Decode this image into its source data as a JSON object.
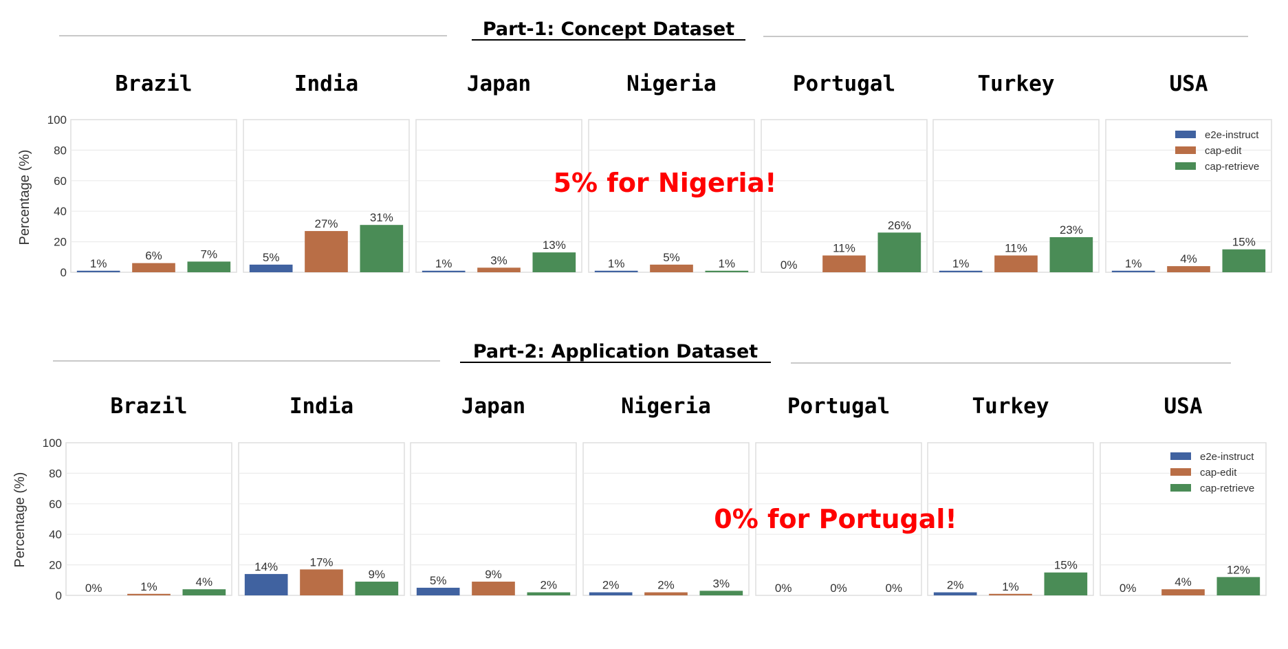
{
  "chart_data": [
    {
      "type": "bar",
      "title": "Part-1: Concept Dataset",
      "ylabel": "Percentage (%)",
      "ylim": [
        0,
        100
      ],
      "yticks": [
        "0",
        "20",
        "40",
        "60",
        "80",
        "100"
      ],
      "grid": true,
      "legend_position": "top-right",
      "annotation": "5% for Nigeria!",
      "value_suffix": "%",
      "panels": [
        {
          "name": "Brazil",
          "values": [
            1,
            6,
            7
          ]
        },
        {
          "name": "India",
          "values": [
            5,
            27,
            31
          ]
        },
        {
          "name": "Japan",
          "values": [
            1,
            3,
            13
          ]
        },
        {
          "name": "Nigeria",
          "values": [
            1,
            5,
            1
          ]
        },
        {
          "name": "Portugal",
          "values": [
            0,
            11,
            26
          ]
        },
        {
          "name": "Turkey",
          "values": [
            1,
            11,
            23
          ]
        },
        {
          "name": "USA",
          "values": [
            1,
            4,
            15
          ]
        }
      ],
      "series": [
        {
          "name": "e2e-instruct",
          "color": "#4062a0"
        },
        {
          "name": "cap-edit",
          "color": "#b96e46"
        },
        {
          "name": "cap-retrieve",
          "color": "#4a8c56"
        }
      ]
    },
    {
      "type": "bar",
      "title": "Part-2: Application Dataset",
      "ylabel": "Percentage (%)",
      "ylim": [
        0,
        100
      ],
      "yticks": [
        "0",
        "20",
        "40",
        "60",
        "80",
        "100"
      ],
      "grid": true,
      "legend_position": "top-right",
      "annotation": "0% for Portugal!",
      "value_suffix": "%",
      "panels": [
        {
          "name": "Brazil",
          "values": [
            0,
            1,
            4
          ]
        },
        {
          "name": "India",
          "values": [
            14,
            17,
            9
          ]
        },
        {
          "name": "Japan",
          "values": [
            5,
            9,
            2
          ]
        },
        {
          "name": "Nigeria",
          "values": [
            2,
            2,
            3
          ]
        },
        {
          "name": "Portugal",
          "values": [
            0,
            0,
            0
          ]
        },
        {
          "name": "Turkey",
          "values": [
            2,
            1,
            15
          ]
        },
        {
          "name": "USA",
          "values": [
            0,
            4,
            12
          ]
        }
      ],
      "series": [
        {
          "name": "e2e-instruct",
          "color": "#4062a0"
        },
        {
          "name": "cap-edit",
          "color": "#b96e46"
        },
        {
          "name": "cap-retrieve",
          "color": "#4a8c56"
        }
      ]
    }
  ]
}
